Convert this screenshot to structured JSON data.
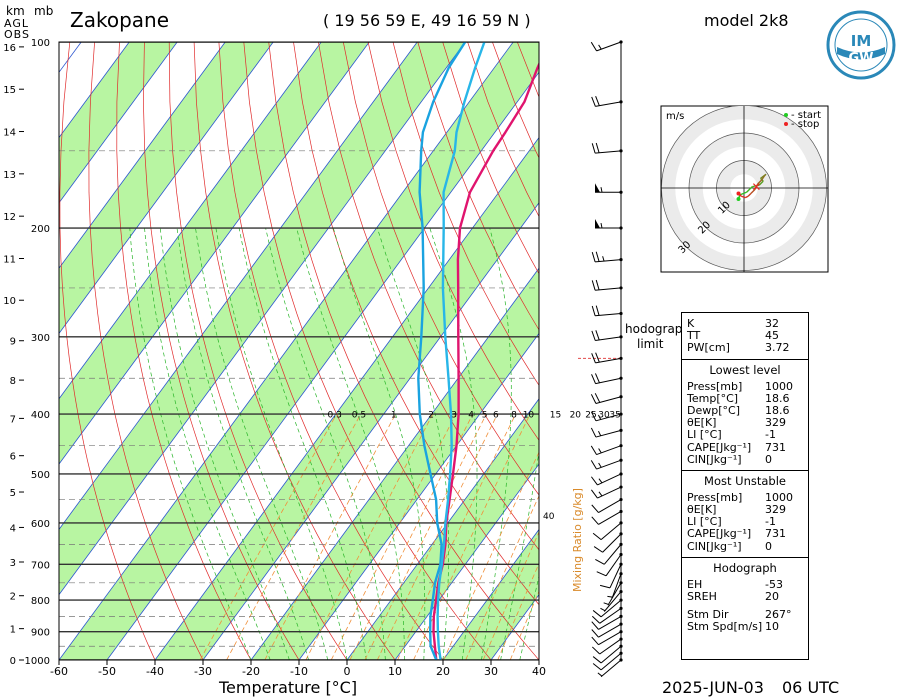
{
  "header": {
    "station": "Zakopane",
    "coords": "( 19 56 59  E, 49 16 59  N )",
    "model": "model 2k8",
    "date": "2025-JUN-03",
    "time": "06 UTC",
    "unit_km": "km",
    "unit_mb": "mb",
    "agl_label": "AGL",
    "obs_label": "OBS"
  },
  "logo": {
    "text_top": "IM",
    "text_bottom": "GW"
  },
  "chart_data": {
    "type": "line",
    "title": "",
    "xlabel": "Temperature [°C]",
    "ylabel": "mb",
    "xlim": [
      -60,
      40
    ],
    "ylim": [
      1000,
      100
    ],
    "x_ticks": [
      -60,
      -50,
      -40,
      -30,
      -20,
      -10,
      0,
      10,
      20,
      30,
      40
    ],
    "pressure_labels": [
      100,
      200,
      300,
      400,
      500,
      600,
      700,
      800,
      900,
      1000
    ],
    "height_km_labels": [
      0,
      1,
      2,
      3,
      4,
      5,
      6,
      7,
      8,
      9,
      10,
      11,
      12,
      13,
      14,
      15,
      16
    ],
    "mixing_ratio_label": "Mixing Ratio [g/kg]",
    "mixing_ratio_values": [
      "0.3",
      "0.5",
      "1",
      "2",
      "3",
      "4",
      "5",
      "6",
      "8",
      "10",
      "15",
      "20",
      "25",
      "30",
      "35"
    ],
    "theta_e_label": "40",
    "series": [
      {
        "name": "",
        "color": "#e0146e",
        "points": [
          [
            1000,
            18.6
          ],
          [
            950,
            16.2
          ],
          [
            900,
            13.7
          ],
          [
            850,
            11.4
          ],
          [
            800,
            9.4
          ],
          [
            750,
            7.2
          ],
          [
            700,
            5.3
          ],
          [
            650,
            2.8
          ],
          [
            600,
            -0.3
          ],
          [
            550,
            -3.2
          ],
          [
            500,
            -6.4
          ],
          [
            450,
            -10.0
          ],
          [
            400,
            -14.4
          ],
          [
            350,
            -19.9
          ],
          [
            300,
            -26.3
          ],
          [
            250,
            -33.8
          ],
          [
            225,
            -38.2
          ],
          [
            200,
            -42.6
          ],
          [
            175,
            -46.0
          ],
          [
            150,
            -47.5
          ],
          [
            140,
            -47.8
          ],
          [
            125,
            -48.5
          ],
          [
            110,
            -51.0
          ],
          [
            100,
            -52.5
          ]
        ]
      },
      {
        "name": "",
        "color": "#1aa3e0",
        "points": [
          [
            1000,
            18.6
          ],
          [
            950,
            15.3
          ],
          [
            900,
            13.0
          ],
          [
            850,
            10.7
          ],
          [
            800,
            8.7
          ],
          [
            750,
            6.5
          ],
          [
            700,
            4.8
          ],
          [
            650,
            2.0
          ],
          [
            600,
            -2.2
          ],
          [
            550,
            -6.0
          ],
          [
            500,
            -11.1
          ],
          [
            450,
            -16.7
          ],
          [
            400,
            -22.5
          ],
          [
            350,
            -28.3
          ],
          [
            300,
            -34.0
          ],
          [
            250,
            -41.0
          ],
          [
            200,
            -50.4
          ],
          [
            175,
            -56.5
          ],
          [
            150,
            -62.5
          ],
          [
            140,
            -65.0
          ],
          [
            125,
            -67.5
          ],
          [
            110,
            -69.5
          ],
          [
            100,
            -70.0
          ]
        ]
      },
      {
        "name": "",
        "color": "#28b6e8",
        "points": [
          [
            1000,
            19.5
          ],
          [
            950,
            17.0
          ],
          [
            900,
            14.6
          ],
          [
            850,
            12.2
          ],
          [
            800,
            9.8
          ],
          [
            750,
            7.4
          ],
          [
            700,
            5.1
          ],
          [
            650,
            2.5
          ],
          [
            600,
            -0.5
          ],
          [
            550,
            -3.5
          ],
          [
            500,
            -7.0
          ],
          [
            450,
            -11.0
          ],
          [
            400,
            -16.0
          ],
          [
            350,
            -22.0
          ],
          [
            300,
            -29.0
          ],
          [
            250,
            -37.0
          ],
          [
            200,
            -46.0
          ],
          [
            175,
            -51.5
          ],
          [
            150,
            -55.5
          ],
          [
            140,
            -58.0
          ],
          [
            125,
            -61.0
          ],
          [
            110,
            -64.0
          ],
          [
            100,
            -66.0
          ]
        ]
      }
    ],
    "wind_barbs": [
      {
        "p": 100,
        "dir": 250,
        "spd": 15
      },
      {
        "p": 125,
        "dir": 260,
        "spd": 20
      },
      {
        "p": 150,
        "dir": 265,
        "spd": 20
      },
      {
        "p": 175,
        "dir": 270,
        "spd": 55
      },
      {
        "p": 200,
        "dir": 270,
        "spd": 55
      },
      {
        "p": 225,
        "dir": 265,
        "spd": 25
      },
      {
        "p": 250,
        "dir": 265,
        "spd": 20
      },
      {
        "p": 275,
        "dir": 265,
        "spd": 20
      },
      {
        "p": 300,
        "dir": 262,
        "spd": 20
      },
      {
        "p": 325,
        "dir": 260,
        "spd": 20
      },
      {
        "p": 350,
        "dir": 258,
        "spd": 20
      },
      {
        "p": 375,
        "dir": 255,
        "spd": 20
      },
      {
        "p": 400,
        "dir": 255,
        "spd": 15
      },
      {
        "p": 425,
        "dir": 255,
        "spd": 15
      },
      {
        "p": 450,
        "dir": 250,
        "spd": 15
      },
      {
        "p": 475,
        "dir": 250,
        "spd": 15
      },
      {
        "p": 500,
        "dir": 245,
        "spd": 15
      },
      {
        "p": 525,
        "dir": 245,
        "spd": 15
      },
      {
        "p": 550,
        "dir": 240,
        "spd": 10
      },
      {
        "p": 575,
        "dir": 240,
        "spd": 10
      },
      {
        "p": 600,
        "dir": 230,
        "spd": 10
      },
      {
        "p": 625,
        "dir": 225,
        "spd": 10
      },
      {
        "p": 650,
        "dir": 220,
        "spd": 10
      },
      {
        "p": 675,
        "dir": 215,
        "spd": 10
      },
      {
        "p": 700,
        "dir": 205,
        "spd": 10
      },
      {
        "p": 725,
        "dir": 200,
        "spd": 5
      },
      {
        "p": 750,
        "dir": 210,
        "spd": 5
      },
      {
        "p": 775,
        "dir": 220,
        "spd": 5
      },
      {
        "p": 800,
        "dir": 230,
        "spd": 10
      },
      {
        "p": 825,
        "dir": 235,
        "spd": 10
      },
      {
        "p": 850,
        "dir": 240,
        "spd": 10
      },
      {
        "p": 875,
        "dir": 240,
        "spd": 10
      },
      {
        "p": 900,
        "dir": 240,
        "spd": 10
      },
      {
        "p": 925,
        "dir": 235,
        "spd": 10
      },
      {
        "p": 950,
        "dir": 230,
        "spd": 10
      },
      {
        "p": 975,
        "dir": 230,
        "spd": 10
      },
      {
        "p": 1000,
        "dir": 230,
        "spd": 5
      }
    ],
    "hodograph": {
      "unit": "m/s",
      "legend_start": "- start",
      "legend_stop": "- stop",
      "ring_labels": [
        "10",
        "20",
        "30"
      ],
      "ring_values": [
        10,
        20,
        30
      ],
      "start_color": "#22cc22",
      "stop_color": "#ee2222",
      "points": [
        [
          -2,
          -4
        ],
        [
          -1.5,
          -2.5
        ],
        [
          1.0,
          -1.5
        ],
        [
          3.0,
          0.5
        ],
        [
          5.5,
          1.0
        ],
        [
          7.0,
          2.5
        ],
        [
          6.0,
          3.5
        ],
        [
          8.0,
          5.0
        ],
        [
          7.5,
          4.5
        ],
        [
          6.5,
          3.0
        ],
        [
          5.0,
          1.5
        ],
        [
          4.0,
          -0.5
        ],
        [
          2.5,
          -2.0
        ],
        [
          1.5,
          -3.0
        ],
        [
          0.5,
          -3.5
        ],
        [
          -1.0,
          -3.0
        ],
        [
          -2.0,
          -2.0
        ]
      ],
      "storm_motion": [
        4.5,
        0.5
      ]
    },
    "hodograph_limit_label": [
      "hodograph",
      "limit"
    ],
    "hodograph_limit_p": 325
  },
  "indices": {
    "top": [
      {
        "k": "K",
        "v": "32"
      },
      {
        "k": "TT",
        "v": "45"
      },
      {
        "k": "PW[cm]",
        "v": "3.72"
      }
    ],
    "lowest_title": "Lowest level",
    "lowest": [
      {
        "k": "Press[mb]",
        "v": "1000"
      },
      {
        "k": "Temp[°C]",
        "v": "18.6"
      },
      {
        "k": "Dewp[°C]",
        "v": "18.6"
      },
      {
        "k": "θE[K]",
        "v": "329"
      },
      {
        "k": "LI [°C]",
        "v": "-1"
      },
      {
        "k": "CAPE[Jkg⁻¹]",
        "v": "731"
      },
      {
        "k": "CIN[Jkg⁻¹]",
        "v": "0"
      }
    ],
    "unstable_title": "Most Unstable",
    "unstable": [
      {
        "k": "Press[mb]",
        "v": "1000"
      },
      {
        "k": "θE[K]",
        "v": "329"
      },
      {
        "k": "LI [°C]",
        "v": "-1"
      },
      {
        "k": "CAPE[Jkg⁻¹]",
        "v": "731"
      },
      {
        "k": "CIN[Jkg⁻¹]",
        "v": "0"
      }
    ],
    "hodo_title": "Hodograph",
    "hodo": [
      {
        "k": "EH",
        "v": "-53"
      },
      {
        "k": "SREH",
        "v": "20"
      }
    ],
    "storm": [
      {
        "k": "Stm Dir",
        "v": "267°"
      },
      {
        "k": "Stm Spd[m/s]",
        "v": "10"
      }
    ]
  }
}
